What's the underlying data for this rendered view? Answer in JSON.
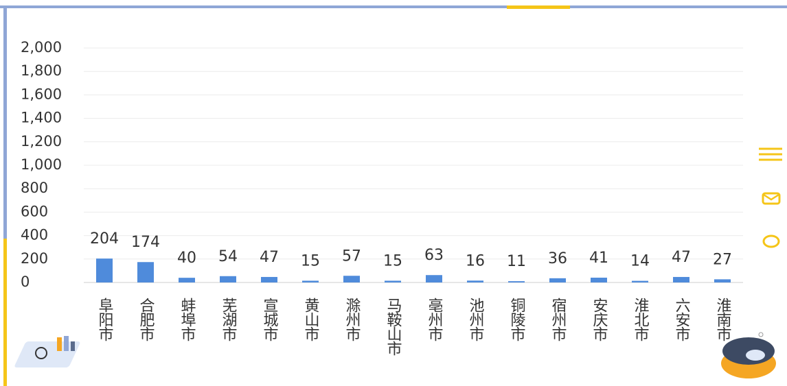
{
  "chart_data": {
    "type": "bar",
    "categories": [
      "阜阳市",
      "合肥市",
      "蚌埠市",
      "芜湖市",
      "宣城市",
      "黄山市",
      "滁州市",
      "马鞍山市",
      "亳州市",
      "池州市",
      "铜陵市",
      "宿州市",
      "安庆市",
      "淮北市",
      "六安市",
      "淮南市"
    ],
    "values": [
      204,
      174,
      40,
      54,
      47,
      15,
      57,
      15,
      63,
      16,
      11,
      36,
      41,
      14,
      47,
      27
    ],
    "color": "#4f8bdb",
    "ylim": [
      0,
      2000
    ],
    "yticks": [
      0,
      200,
      400,
      600,
      800,
      {
        "value": 1000,
        "label": "1,000"
      },
      {
        "value": 1200,
        "label": "1,200"
      },
      {
        "value": 1400,
        "label": "1,400"
      },
      {
        "value": 1600,
        "label": "1,600"
      },
      {
        "value": 1800,
        "label": "1,800"
      },
      {
        "value": 2000,
        "label": "2,000"
      }
    ],
    "grid": true
  }
}
